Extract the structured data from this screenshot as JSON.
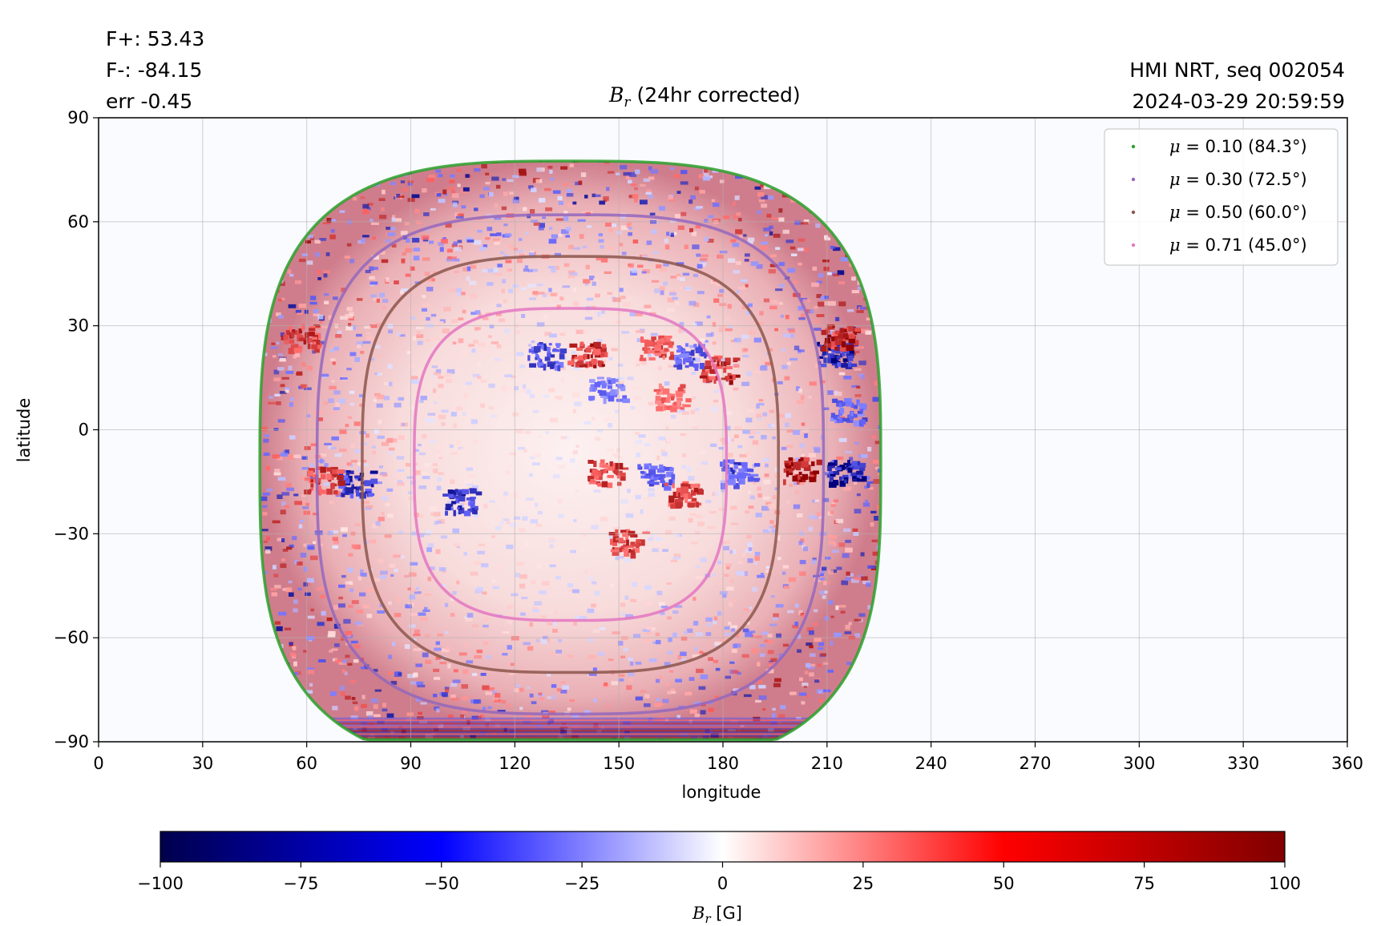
{
  "header": {
    "stats": [
      "F+: 53.43",
      "F-: -84.15",
      "err -0.45"
    ],
    "meta": [
      "HMI NRT, seq 002054",
      "2024-03-29 20:59:59"
    ]
  },
  "chart_data": [
    {
      "type": "heatmap",
      "title": "B_r (24hr corrected)",
      "title_symbol": "B",
      "title_subscript": "r",
      "title_suffix": " (24hr corrected)",
      "xlabel": "longitude",
      "ylabel": "latitude",
      "xlim": [
        0,
        360
      ],
      "ylim": [
        -90,
        90
      ],
      "xticks": [
        0,
        30,
        60,
        90,
        120,
        150,
        180,
        210,
        240,
        270,
        300,
        330,
        360
      ],
      "yticks": [
        -90,
        -60,
        -30,
        0,
        30,
        60,
        90
      ],
      "grid": true,
      "legend_position": "top-right",
      "disk_center": {
        "lon": 136,
        "lat": -10
      },
      "series": [
        {
          "name": "μ = 0.10 (84.3°)",
          "name_mu": "μ",
          "name_rest": " = 0.10 (84.3°)",
          "color": "#2ca02c",
          "lon_radius": 89.5,
          "lat_radius": 87.5
        },
        {
          "name": "μ = 0.30 (72.5°)",
          "name_mu": "μ",
          "name_rest": " = 0.30 (72.5°)",
          "color": "#9467bd",
          "lon_radius": 73,
          "lat_radius": 72
        },
        {
          "name": "μ = 0.50 (60.0°)",
          "name_mu": "μ",
          "name_rest": " = 0.50 (60.0°)",
          "color": "#8c564b",
          "lon_radius": 60,
          "lat_radius": 60
        },
        {
          "name": "μ = 0.71 (45.0°)",
          "name_mu": "μ",
          "name_rest": " = 0.71 (45.0°)",
          "color": "#e377c2",
          "lon_radius": 45,
          "lat_radius": 45
        }
      ],
      "regions": [
        {
          "lon": 140,
          "lat": 22,
          "value": 85
        },
        {
          "lon": 128,
          "lat": 22,
          "value": -70
        },
        {
          "lon": 178,
          "lat": 18,
          "value": 80
        },
        {
          "lon": 170,
          "lat": 22,
          "value": -65
        },
        {
          "lon": 160,
          "lat": 24,
          "value": 70
        },
        {
          "lon": 146,
          "lat": 12,
          "value": -55
        },
        {
          "lon": 165,
          "lat": 10,
          "value": 60
        },
        {
          "lon": 146,
          "lat": -12,
          "value": 75
        },
        {
          "lon": 160,
          "lat": -13,
          "value": -65
        },
        {
          "lon": 168,
          "lat": -18,
          "value": 75
        },
        {
          "lon": 184,
          "lat": -12,
          "value": -70
        },
        {
          "lon": 152,
          "lat": -32,
          "value": 75
        },
        {
          "lon": 104,
          "lat": -20,
          "value": -80
        },
        {
          "lon": 74,
          "lat": -15,
          "value": -80
        },
        {
          "lon": 64,
          "lat": -14,
          "value": 75
        },
        {
          "lon": 58,
          "lat": 27,
          "value": 80
        },
        {
          "lon": 215,
          "lat": -12,
          "value": -95
        },
        {
          "lon": 202,
          "lat": -11,
          "value": 95
        },
        {
          "lon": 212,
          "lat": 22,
          "value": -90
        },
        {
          "lon": 213,
          "lat": 27,
          "value": 85
        },
        {
          "lon": 216,
          "lat": 6,
          "value": -60
        }
      ]
    },
    {
      "type": "colorbar",
      "label": "B_r [G]",
      "label_symbol": "B",
      "label_subscript": "r",
      "label_suffix": " [G]",
      "range": [
        -100,
        100
      ],
      "ticks": [
        -100,
        -75,
        -50,
        -25,
        0,
        25,
        50,
        75,
        100
      ],
      "colormap": "seismic"
    }
  ]
}
